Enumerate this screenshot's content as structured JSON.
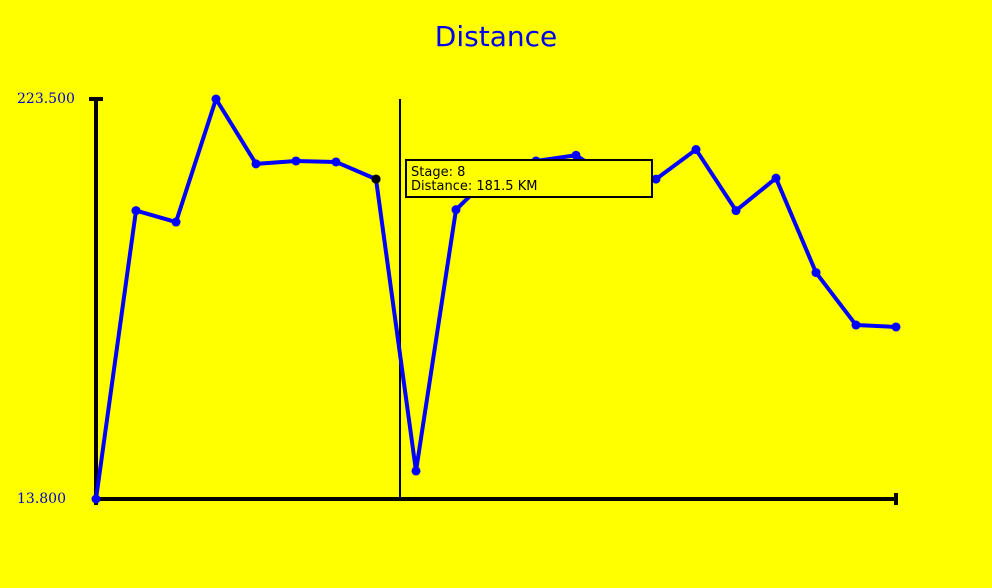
{
  "chart_data": {
    "type": "line",
    "title": "Distance",
    "ylim": [
      13.8,
      223.5
    ],
    "y_tick_labels": [
      "223.500",
      "13.800"
    ],
    "grid": false,
    "series": [
      {
        "color": "#0000ff",
        "x": [
          1,
          2,
          3,
          4,
          5,
          6,
          7,
          8,
          9,
          10,
          11,
          12,
          13,
          14,
          15,
          16,
          17,
          18,
          19,
          20,
          21
        ],
        "values": [
          13.8,
          165.0,
          159.0,
          223.5,
          189.5,
          191.0,
          190.5,
          181.5,
          28.5,
          165.5,
          186.0,
          191.0,
          194.0,
          180.5,
          181.5,
          197.0,
          165.0,
          182.0,
          132.5,
          105.0,
          104.0
        ]
      }
    ]
  },
  "tooltip": {
    "stage_line": "Stage: 8",
    "distance_line": "Distance: 181.5 KM"
  }
}
